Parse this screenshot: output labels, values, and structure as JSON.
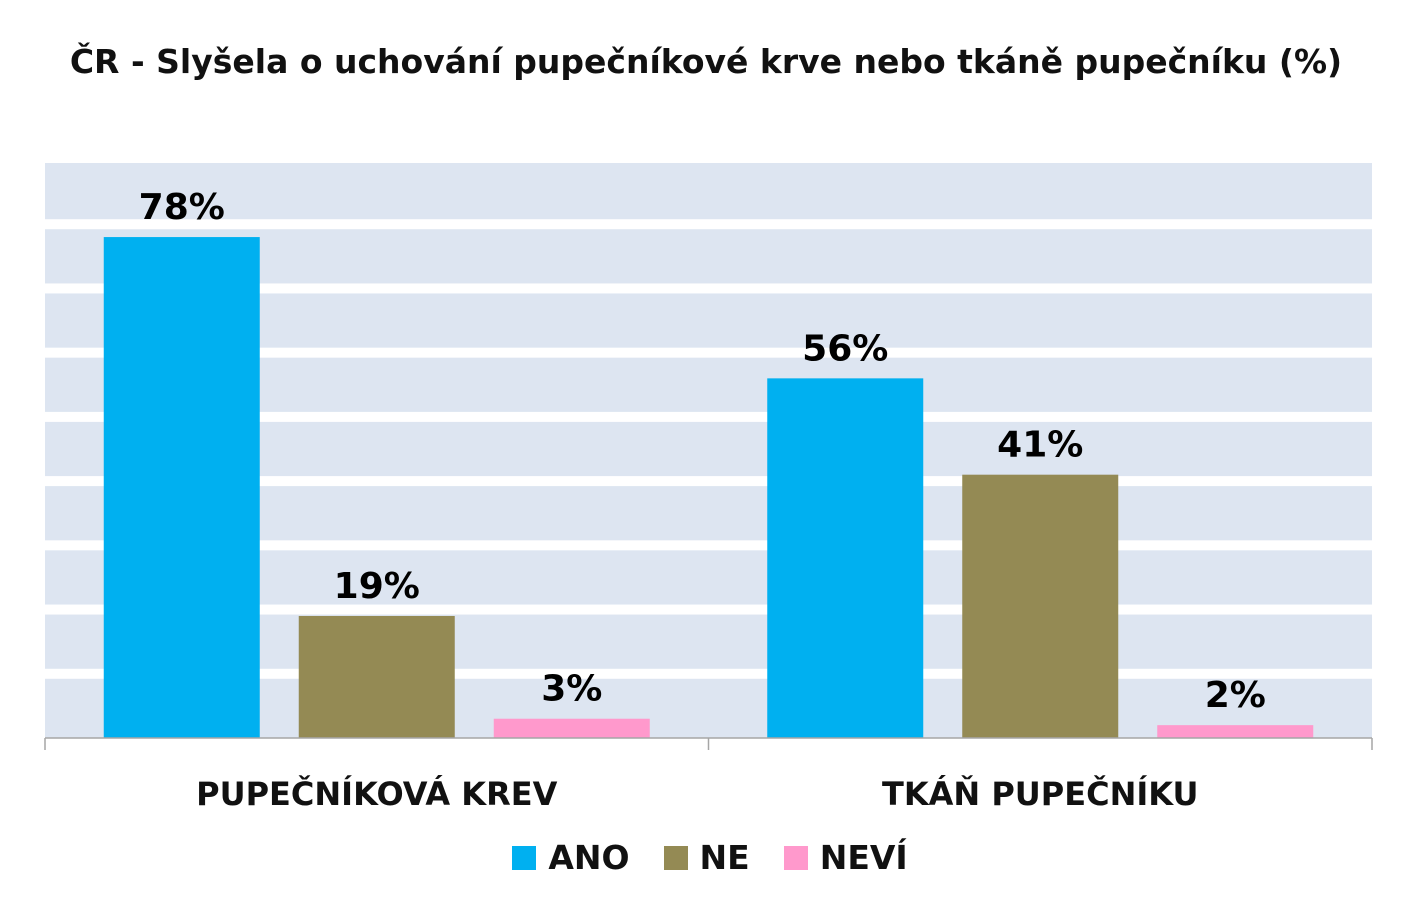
{
  "chart_data": {
    "type": "bar",
    "title": "ČR - Slyšela o uchování pupečníkové krve nebo tkáně pupečníku (%)",
    "categories": [
      "PUPEČNÍKOVÁ KREV",
      "TKÁŇ PUPEČNÍKU"
    ],
    "series": [
      {
        "name": "ANO",
        "values": [
          78,
          56
        ],
        "labels": [
          "78%",
          "56%"
        ],
        "color": "#00b0f0"
      },
      {
        "name": "NE",
        "values": [
          19,
          41
        ],
        "labels": [
          "19%",
          "41%"
        ],
        "color": "#948a54"
      },
      {
        "name": "NEVÍ",
        "values": [
          3,
          2
        ],
        "labels": [
          "3%",
          "2%"
        ],
        "color": "#ff99cc"
      }
    ],
    "xlabel": "",
    "ylabel": "",
    "ylim": [
      0,
      90
    ],
    "grid": true,
    "legend": "bottom"
  }
}
